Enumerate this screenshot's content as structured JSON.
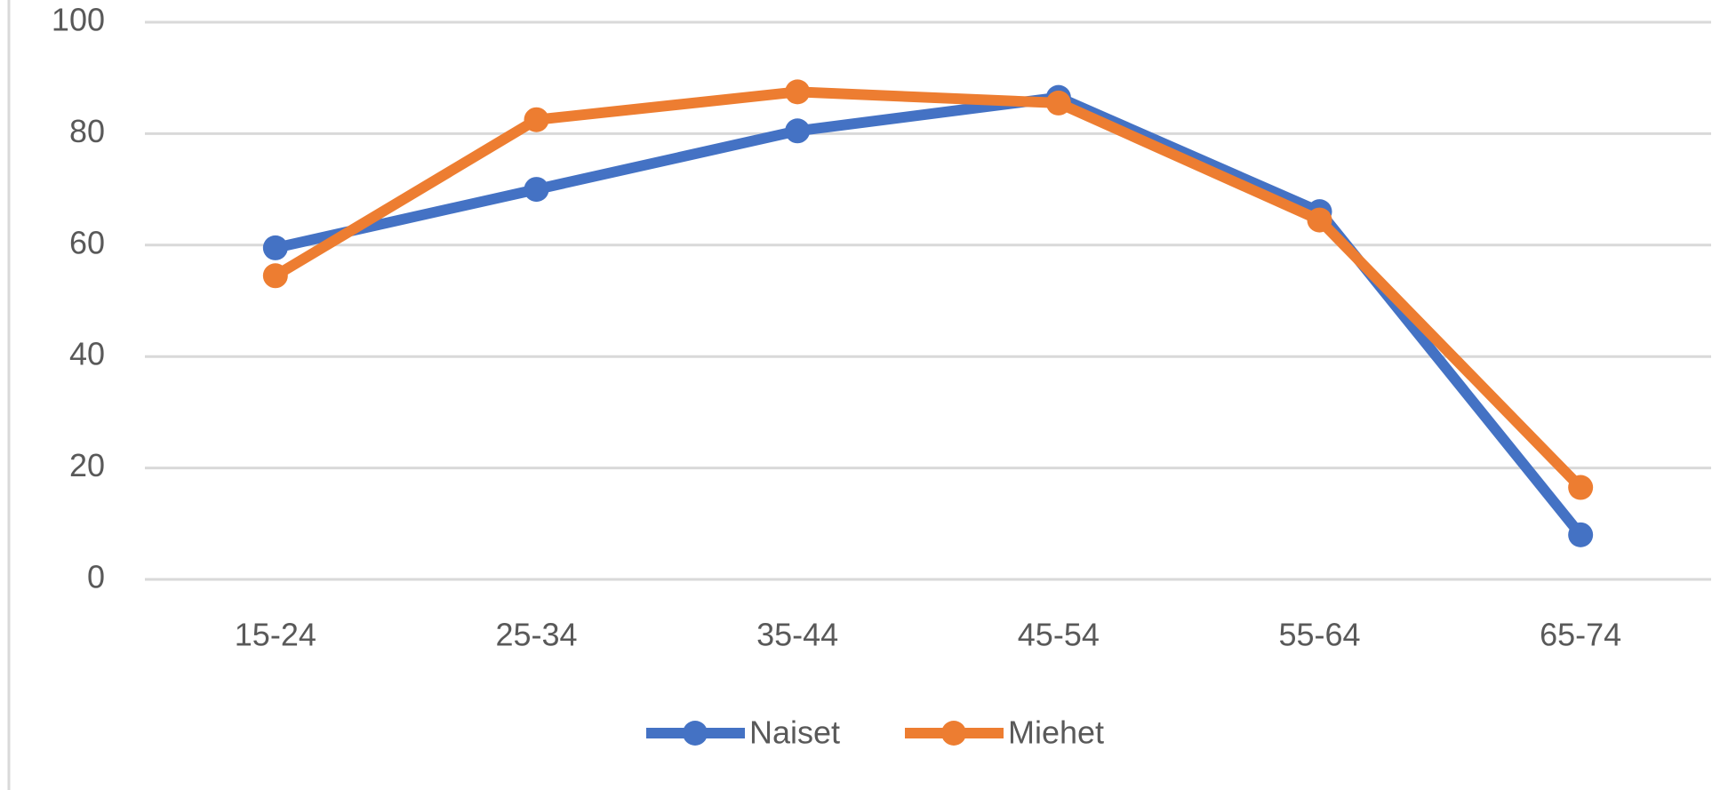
{
  "chart_data": {
    "type": "line",
    "categories": [
      "15-24",
      "25-34",
      "35-44",
      "45-54",
      "55-64",
      "65-74"
    ],
    "series": [
      {
        "name": "Naiset",
        "color": "#4472c4",
        "values": [
          59.5,
          70,
          80.5,
          86.5,
          66,
          8
        ]
      },
      {
        "name": "Miehet",
        "color": "#ed7d31",
        "values": [
          54.5,
          82.5,
          87.5,
          85.5,
          64.5,
          16.5
        ]
      }
    ],
    "ylim": [
      0,
      100
    ],
    "yticks": [
      0,
      20,
      40,
      60,
      80,
      100
    ],
    "grid": true,
    "legend": "bottom"
  }
}
